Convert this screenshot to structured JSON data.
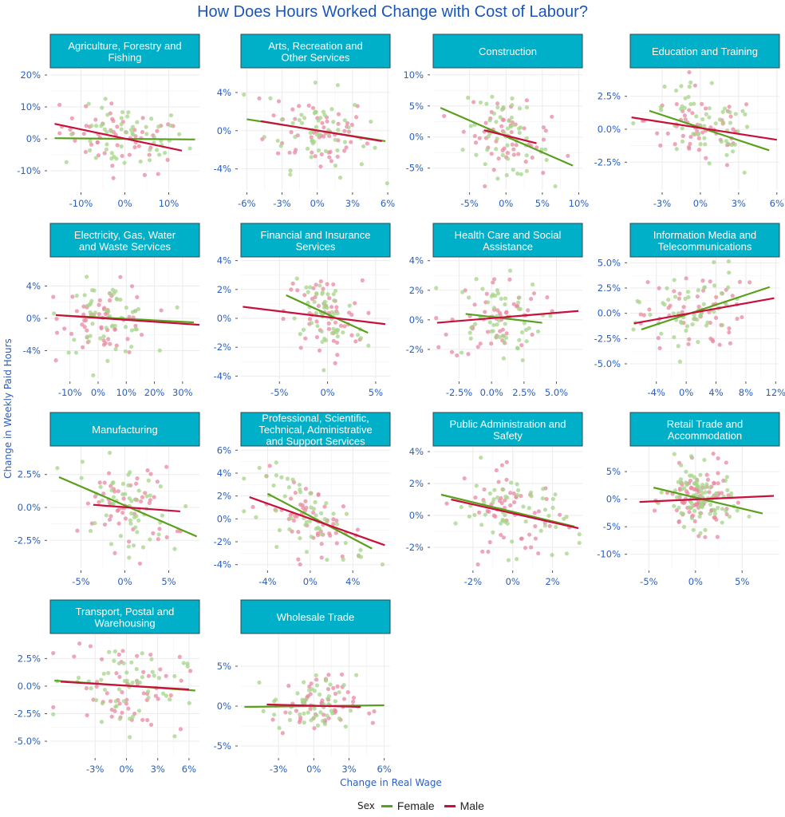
{
  "chart_data": {
    "type": "scatter",
    "title": "How Does Hours Worked Change with Cost of Labour?",
    "xlabel": "Change in Real Wage",
    "ylabel": "Change in Weekly Paid Hours",
    "legend": {
      "title": "Sex",
      "position": "bottom",
      "entries": [
        {
          "name": "Female",
          "color": "#5aa01e"
        },
        {
          "name": "Male",
          "color": "#c8103c"
        }
      ]
    },
    "point_colors": {
      "Female": "#a6d48a",
      "Male": "#e88aa0"
    },
    "facets": [
      {
        "name": "Agriculture, Forestry and Fishing",
        "lines": [
          "Agriculture, Forestry and",
          "Fishing"
        ],
        "xlim": [
          -0.17,
          0.17
        ],
        "ylim": [
          -0.16,
          0.22
        ],
        "xticks": [
          -0.1,
          0,
          0.1
        ],
        "xticklabels": [
          "-10%",
          "0%",
          "10%"
        ],
        "yticks": [
          -0.1,
          0,
          0.1,
          0.2
        ],
        "yticklabels": [
          "-10%",
          "0%",
          "10%",
          "20%"
        ],
        "trend": {
          "Female": [
            [
              -0.16,
              0.002
            ],
            [
              0.16,
              -0.002
            ]
          ],
          "Male": [
            [
              -0.16,
              0.047
            ],
            [
              0.13,
              -0.037
            ]
          ]
        },
        "spread": [
          0.07,
          0.05
        ],
        "n": 55
      },
      {
        "name": "Arts, Recreation and Other Services",
        "lines": [
          "Arts, Recreation and",
          "Other Services"
        ],
        "xlim": [
          -6.5,
          6.2
        ],
        "ylim": [
          -6.2,
          6.5
        ],
        "scale": 0.01,
        "xticks": [
          -6,
          -3,
          0,
          3,
          6
        ],
        "xticklabels": [
          "-6%",
          "-3%",
          "0%",
          "3%",
          "6%"
        ],
        "yticks": [
          -4,
          0,
          4
        ],
        "yticklabels": [
          "-4%",
          "0%",
          "4%"
        ],
        "trend": {
          "Female": [
            [
              -6.0,
              1.2
            ],
            [
              5.8,
              -1.1
            ]
          ],
          "Male": [
            [
              -4.8,
              1.0
            ],
            [
              5.5,
              -1.1
            ]
          ]
        },
        "spread": [
          2.2,
          2.2
        ],
        "n": 55
      },
      {
        "name": "Construction",
        "lines": [
          "Construction"
        ],
        "xlim": [
          -10,
          10.5
        ],
        "ylim": [
          -8.5,
          11
        ],
        "scale": 0.01,
        "xticks": [
          -5,
          0,
          5,
          10
        ],
        "xticklabels": [
          "-5%",
          "0%",
          "5%",
          "10%"
        ],
        "yticks": [
          -5,
          0,
          5,
          10
        ],
        "yticklabels": [
          "-5%",
          "0%",
          "5%",
          "10%"
        ],
        "trend": {
          "Female": [
            [
              -9.0,
              4.7
            ],
            [
              9.2,
              -4.6
            ]
          ],
          "Male": [
            [
              -3.0,
              1.1
            ],
            [
              4.2,
              -1.0
            ]
          ]
        },
        "spread": [
          3.0,
          2.8
        ],
        "n": 55
      },
      {
        "name": "Education and Training",
        "lines": [
          "Education and Training"
        ],
        "xlim": [
          -5.5,
          6.2
        ],
        "ylim": [
          -4.6,
          4.6
        ],
        "scale": 0.01,
        "xticks": [
          -3,
          0,
          3,
          6
        ],
        "xticklabels": [
          "-3%",
          "0%",
          "3%",
          "6%"
        ],
        "yticks": [
          -2.5,
          0,
          2.5
        ],
        "yticklabels": [
          "-2.5%",
          "0.0%",
          "2.5%"
        ],
        "trend": {
          "Female": [
            [
              -4.0,
              1.4
            ],
            [
              5.4,
              -1.6
            ]
          ],
          "Male": [
            [
              -5.4,
              0.9
            ],
            [
              6.0,
              -0.8
            ]
          ]
        },
        "spread": [
          2.2,
          1.5
        ],
        "n": 55
      },
      {
        "name": "Electricity, Gas, Water and Waste Services",
        "lines": [
          "Electricity, Gas, Water",
          "and Waste Services"
        ],
        "xlim": [
          -17,
          36
        ],
        "ylim": [
          -7.5,
          7.5
        ],
        "scale": 0.01,
        "xticks": [
          -10,
          0,
          10,
          20,
          30
        ],
        "xticklabels": [
          "-10%",
          "0%",
          "10%",
          "20%",
          "30%"
        ],
        "yticks": [
          -4,
          0,
          4
        ],
        "yticklabels": [
          "-4%",
          "0%",
          "4%"
        ],
        "trend": {
          "Female": [
            [
              -15,
              0.4
            ],
            [
              34,
              -0.5
            ]
          ],
          "Male": [
            [
              -15,
              0.4
            ],
            [
              36,
              -0.8
            ]
          ]
        },
        "spread": [
          8.0,
          2.2
        ],
        "n": 55
      },
      {
        "name": "Financial and Insurance Services",
        "lines": [
          "Financial and Insurance",
          "Services"
        ],
        "xlim": [
          -9,
          6.5
        ],
        "ylim": [
          -4.2,
          4.2
        ],
        "scale": 0.01,
        "xticks": [
          -5,
          0,
          5
        ],
        "xticklabels": [
          "-5%",
          "0%",
          "5%"
        ],
        "yticks": [
          -4,
          -2,
          0,
          2,
          4
        ],
        "yticklabels": [
          "-4%",
          "-2%",
          "0%",
          "2%",
          "4%"
        ],
        "trend": {
          "Female": [
            [
              -4.3,
              1.6
            ],
            [
              4.2,
              -1.0
            ]
          ],
          "Male": [
            [
              -8.8,
              0.8
            ],
            [
              6.0,
              -0.4
            ]
          ]
        },
        "spread": [
          2.0,
          1.4
        ],
        "n": 55
      },
      {
        "name": "Health Care and Social Assistance",
        "lines": [
          "Health Care and Social",
          "Assistance"
        ],
        "xlim": [
          -4.5,
          7.0
        ],
        "ylim": [
          -4.0,
          4.2
        ],
        "scale": 0.01,
        "xticks": [
          -2.5,
          0,
          2.5,
          5
        ],
        "xticklabels": [
          "-2.5%",
          "0.0%",
          "2.5%",
          "5.0%"
        ],
        "yticks": [
          -2,
          0,
          2,
          4
        ],
        "yticklabels": [
          "-2%",
          "0%",
          "2%",
          "4%"
        ],
        "trend": {
          "Female": [
            [
              -2.0,
              0.4
            ],
            [
              3.9,
              -0.2
            ]
          ],
          "Male": [
            [
              -4.2,
              -0.2
            ],
            [
              6.7,
              0.6
            ]
          ]
        },
        "spread": [
          1.8,
          1.4
        ],
        "n": 55
      },
      {
        "name": "Information Media and Telecommunications",
        "lines": [
          "Information Media and",
          "Telecommunications"
        ],
        "xlim": [
          -7.5,
          12.5
        ],
        "ylim": [
          -6.5,
          5.5
        ],
        "scale": 0.01,
        "xticks": [
          -4,
          0,
          4,
          8,
          12
        ],
        "xticklabels": [
          "-4%",
          "0%",
          "4%",
          "8%",
          "12%"
        ],
        "yticks": [
          -5,
          -2.5,
          0,
          2.5,
          5
        ],
        "yticklabels": [
          "-5.0%",
          "-2.5%",
          "0.0%",
          "2.5%",
          "5.0%"
        ],
        "trend": {
          "Female": [
            [
              -6.0,
              -1.6
            ],
            [
              11.2,
              2.6
            ]
          ],
          "Male": [
            [
              -7.0,
              -1.0
            ],
            [
              11.8,
              1.5
            ]
          ]
        },
        "spread": [
          3.5,
          2.0
        ],
        "n": 55
      },
      {
        "name": "Manufacturing",
        "lines": [
          "Manufacturing"
        ],
        "xlim": [
          -8.5,
          8.5
        ],
        "ylim": [
          -4.6,
          4.6
        ],
        "scale": 0.01,
        "xticks": [
          -5,
          0,
          5
        ],
        "xticklabels": [
          "-5%",
          "0%",
          "5%"
        ],
        "yticks": [
          -2.5,
          0,
          2.5
        ],
        "yticklabels": [
          "-2.5%",
          "0.0%",
          "2.5%"
        ],
        "trend": {
          "Female": [
            [
              -7.5,
              2.3
            ],
            [
              8.2,
              -2.2
            ]
          ],
          "Male": [
            [
              -3.6,
              0.2
            ],
            [
              6.3,
              -0.3
            ]
          ]
        },
        "spread": [
          2.6,
          1.6
        ],
        "n": 55
      },
      {
        "name": "Professional, Scientific, Technical, Administrative and Support Services",
        "lines": [
          "Professional, Scientific,",
          "Technical, Administrative",
          "and Support Services"
        ],
        "xlim": [
          -6.5,
          7.5
        ],
        "ylim": [
          -4.3,
          6.3
        ],
        "scale": 0.01,
        "xticks": [
          -4,
          0,
          4
        ],
        "xticklabels": [
          "-4%",
          "0%",
          "4%"
        ],
        "yticks": [
          -4,
          -2,
          0,
          2,
          4,
          6
        ],
        "yticklabels": [
          "-4%",
          "-2%",
          "0%",
          "2%",
          "4%",
          "6%"
        ],
        "trend": {
          "Female": [
            [
              -4.0,
              2.2
            ],
            [
              5.8,
              -2.6
            ]
          ],
          "Male": [
            [
              -5.7,
              1.9
            ],
            [
              7.0,
              -2.3
            ]
          ]
        },
        "spread": [
          2.5,
          1.5
        ],
        "n": 55
      },
      {
        "name": "Public Administration and Safety",
        "lines": [
          "Public Administration and",
          "Safety"
        ],
        "xlim": [
          -4.0,
          3.5
        ],
        "ylim": [
          -3.3,
          4.3
        ],
        "scale": 0.01,
        "xticks": [
          -2,
          0,
          2
        ],
        "xticklabels": [
          "-2%",
          "0%",
          "2%"
        ],
        "yticks": [
          -2,
          0,
          2,
          4
        ],
        "yticklabels": [
          "-2%",
          "0%",
          "2%",
          "4%"
        ],
        "trend": {
          "Female": [
            [
              -3.6,
              1.3
            ],
            [
              3.1,
              -0.7
            ]
          ],
          "Male": [
            [
              -3.1,
              1.0
            ],
            [
              3.3,
              -0.8
            ]
          ]
        },
        "spread": [
          1.4,
          1.3
        ],
        "n": 55
      },
      {
        "name": "Retail Trade and Accommodation",
        "lines": [
          "Retail Trade and",
          "Accommodation"
        ],
        "xlim": [
          -7,
          9
        ],
        "ylim": [
          -12.5,
          9.5
        ],
        "scale": 0.01,
        "xticks": [
          -5,
          0,
          5
        ],
        "xticklabels": [
          "-5%",
          "0%",
          "5%"
        ],
        "yticks": [
          -10,
          -5,
          0,
          5
        ],
        "yticklabels": [
          "-10%",
          "-5%",
          "0%",
          "5%"
        ],
        "trend": {
          "Female": [
            [
              -4.5,
              2.1
            ],
            [
              7.2,
              -2.6
            ]
          ],
          "Male": [
            [
              -6.0,
              -0.5
            ],
            [
              8.4,
              0.6
            ]
          ]
        },
        "spread": [
          1.8,
          2.8
        ],
        "n": 90
      },
      {
        "name": "Transport, Postal and Warehousing",
        "lines": [
          "Transport, Postal and",
          "Warehousing"
        ],
        "xlim": [
          -7.3,
          7.0
        ],
        "ylim": [
          -6.3,
          4.7
        ],
        "scale": 0.01,
        "xticks": [
          -3,
          0,
          3,
          6
        ],
        "xticklabels": [
          "-3%",
          "0%",
          "3%",
          "6%"
        ],
        "yticks": [
          -5,
          -2.5,
          0,
          2.5
        ],
        "yticklabels": [
          "-5.0%",
          "-2.5%",
          "0.0%",
          "2.5%"
        ],
        "trend": {
          "Female": [
            [
              -6.9,
              0.5
            ],
            [
              6.6,
              -0.4
            ]
          ],
          "Male": [
            [
              -6.3,
              0.4
            ],
            [
              6.0,
              -0.3
            ]
          ]
        },
        "spread": [
          2.8,
          2.0
        ],
        "n": 55
      },
      {
        "name": "Wholesale Trade",
        "lines": [
          "Wholesale Trade"
        ],
        "xlim": [
          -6.2,
          6.5
        ],
        "ylim": [
          -6.2,
          9.0
        ],
        "scale": 0.01,
        "xticks": [
          -3,
          0,
          3,
          6
        ],
        "xticklabels": [
          "-3%",
          "0%",
          "3%",
          "6%"
        ],
        "yticks": [
          -5,
          0,
          5
        ],
        "yticklabels": [
          "-5%",
          "0%",
          "5%"
        ],
        "trend": {
          "Female": [
            [
              -5.9,
              -0.1
            ],
            [
              6.0,
              0.1
            ]
          ],
          "Male": [
            [
              -4.0,
              0.2
            ],
            [
              4.0,
              -0.1
            ]
          ]
        },
        "spread": [
          1.8,
          1.9
        ],
        "n": 55
      }
    ]
  }
}
